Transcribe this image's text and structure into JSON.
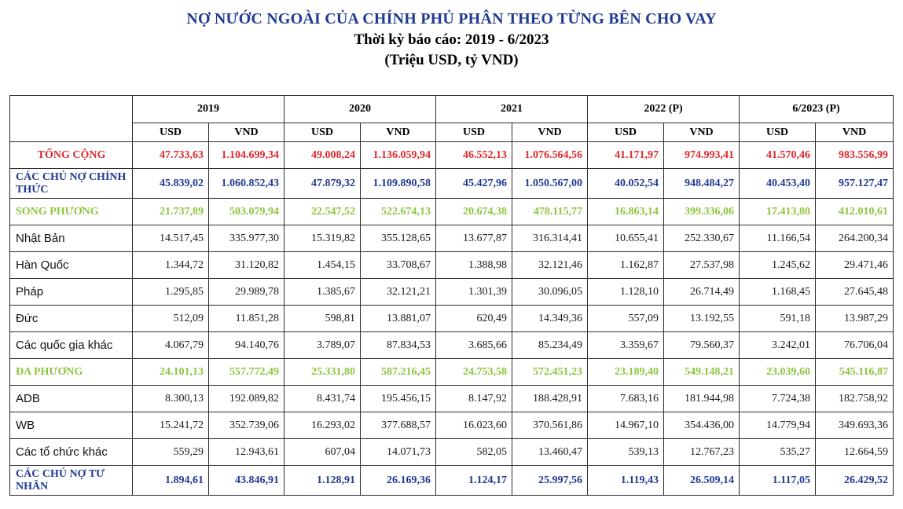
{
  "title": "NỢ NƯỚC NGOÀI CỦA CHÍNH PHỦ PHÂN THEO TỪNG BÊN CHO VAY",
  "period": "Thời kỳ báo cáo: 2019 - 6/2023",
  "unit": "(Triệu USD, tỷ VND)",
  "years": [
    "2019",
    "2020",
    "2021",
    "2022 (P)",
    "6/2023 (P)"
  ],
  "subheaders": {
    "usd": "USD",
    "vnd": "VND"
  },
  "rows": [
    {
      "label": "TỔNG CỘNG",
      "values": [
        "47.733,63",
        "1.104.699,34",
        "49.008,24",
        "1.136.059,94",
        "46.552,13",
        "1.076.564,56",
        "41.171,97",
        "974.993,41",
        "41.570,46",
        "983.556,99"
      ]
    },
    {
      "label": "CÁC CHỦ NỢ CHÍNH THỨC",
      "values": [
        "45.839,02",
        "1.060.852,43",
        "47.879,32",
        "1.109.890,58",
        "45.427,96",
        "1.050.567,00",
        "40.052,54",
        "948.484,27",
        "40.453,40",
        "957.127,47"
      ]
    },
    {
      "label": "SONG PHƯƠNG",
      "values": [
        "21.737,89",
        "503.079,94",
        "22.547,52",
        "522.674,13",
        "20.674,38",
        "478.115,77",
        "16.863,14",
        "399.336,06",
        "17.413,80",
        "412.010,61"
      ]
    },
    {
      "label": "Nhật Bản",
      "values": [
        "14.517,45",
        "335.977,30",
        "15.319,82",
        "355.128,65",
        "13.677,87",
        "316.314,41",
        "10.655,41",
        "252.330,67",
        "11.166,54",
        "264.200,34"
      ]
    },
    {
      "label": "Hàn Quốc",
      "values": [
        "1.344,72",
        "31.120,82",
        "1.454,15",
        "33.708,67",
        "1.388,98",
        "32.121,46",
        "1.162,87",
        "27.537,98",
        "1.245,62",
        "29.471,46"
      ]
    },
    {
      "label": "Pháp",
      "values": [
        "1.295,85",
        "29.989,78",
        "1.385,67",
        "32.121,21",
        "1.301,39",
        "30.096,05",
        "1.128,10",
        "26.714,49",
        "1.168,45",
        "27.645,48"
      ]
    },
    {
      "label": "Đức",
      "values": [
        "512,09",
        "11.851,28",
        "598,81",
        "13.881,07",
        "620,49",
        "14.349,36",
        "557,09",
        "13.192,55",
        "591,18",
        "13.987,29"
      ]
    },
    {
      "label": "Các quốc gia khác",
      "values": [
        "4.067,79",
        "94.140,76",
        "3.789,07",
        "87.834,53",
        "3.685,66",
        "85.234,49",
        "3.359,67",
        "79.560,37",
        "3.242,01",
        "76.706,04"
      ]
    },
    {
      "label": "ĐA PHƯƠNG",
      "values": [
        "24.101,13",
        "557.772,49",
        "25.331,80",
        "587.216,45",
        "24.753,58",
        "572.451,23",
        "23.189,40",
        "549.148,21",
        "23.039,60",
        "545.116,87"
      ]
    },
    {
      "label": "ADB",
      "values": [
        "8.300,13",
        "192.089,82",
        "8.431,74",
        "195.456,15",
        "8.147,92",
        "188.428,91",
        "7.683,16",
        "181.944,98",
        "7.724,38",
        "182.758,92"
      ]
    },
    {
      "label": "WB",
      "values": [
        "15.241,72",
        "352.739,06",
        "16.293,02",
        "377.688,57",
        "16.023,60",
        "370.561,86",
        "14.967,10",
        "354.436,00",
        "14.779,94",
        "349.693,36"
      ]
    },
    {
      "label": "Các tổ chức khác",
      "values": [
        "559,29",
        "12.943,61",
        "607,04",
        "14.071,73",
        "582,05",
        "13.460,47",
        "539,13",
        "12.767,23",
        "535,27",
        "12.664,59"
      ]
    },
    {
      "label": "CÁC CHỦ NỢ TƯ NHÂN",
      "values": [
        "1.894,61",
        "43.846,91",
        "1.128,91",
        "26.169,36",
        "1.124,17",
        "25.997,56",
        "1.119,43",
        "26.509,14",
        "1.117,05",
        "26.429,52"
      ]
    }
  ],
  "colors": {
    "title": "#1f3a93",
    "total": "#e0282c",
    "official": "#1f3a93",
    "group": "#8dc63f",
    "detail": "#1a1a1a"
  }
}
